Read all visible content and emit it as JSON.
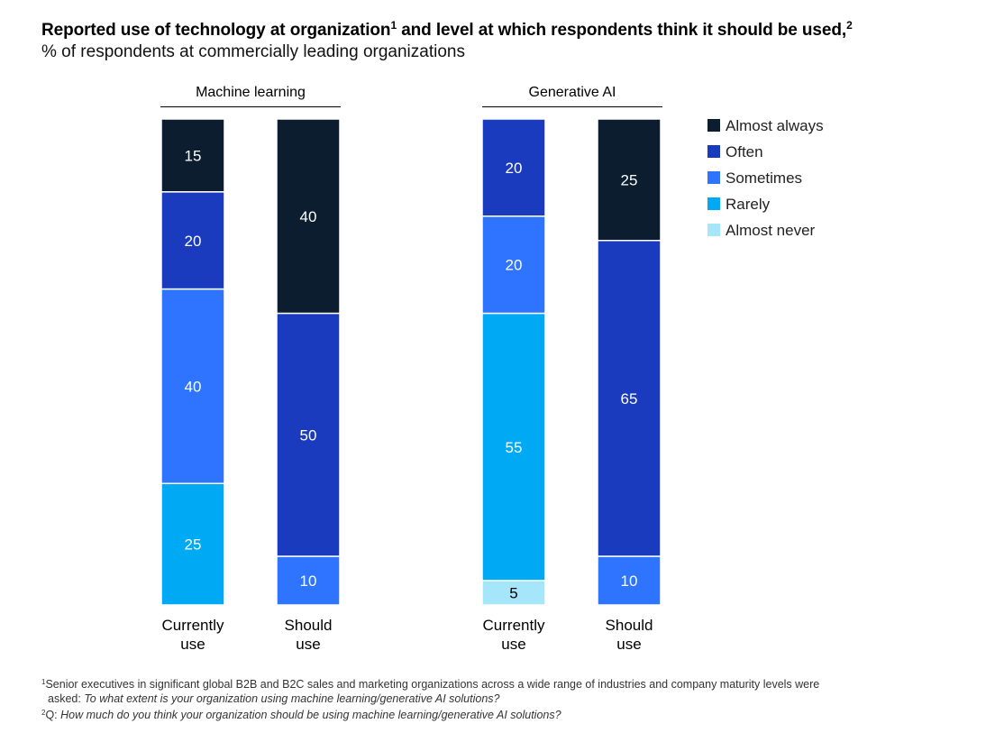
{
  "title": {
    "text": "Reported use of technology at organization",
    "sup1": "1",
    "text2": " and level at which respondents think it should be used,",
    "sup2": "2"
  },
  "subtitle": "% of respondents at commercially leading organizations",
  "chart_data": {
    "type": "bar",
    "stacked": true,
    "normalized_percent": true,
    "categories": [
      "Almost always",
      "Often",
      "Sometimes",
      "Rarely",
      "Almost never"
    ],
    "colors": {
      "Almost always": "#0b1d2e",
      "Often": "#1b3bbf",
      "Sometimes": "#2f74ff",
      "Rarely": "#00a9f4",
      "Almost never": "#a6e6fb"
    },
    "legend_position": "right",
    "groups": [
      {
        "name": "Machine learning",
        "bars": [
          {
            "label_line1": "Currently",
            "label_line2": "use",
            "values": {
              "Almost always": 15,
              "Often": 20,
              "Sometimes": 40,
              "Rarely": 25,
              "Almost never": 0
            }
          },
          {
            "label_line1": "Should",
            "label_line2": "use",
            "values": {
              "Almost always": 40,
              "Often": 50,
              "Sometimes": 10,
              "Rarely": 0,
              "Almost never": 0
            }
          }
        ]
      },
      {
        "name": "Generative AI",
        "bars": [
          {
            "label_line1": "Currently",
            "label_line2": "use",
            "values": {
              "Almost always": 0,
              "Often": 20,
              "Sometimes": 20,
              "Rarely": 55,
              "Almost never": 5
            }
          },
          {
            "label_line1": "Should",
            "label_line2": "use",
            "values": {
              "Almost always": 25,
              "Often": 65,
              "Sometimes": 10,
              "Rarely": 0,
              "Almost never": 0
            }
          }
        ]
      }
    ]
  },
  "footnotes": {
    "fn1_mark": "1",
    "fn1_text": "Senior executives in significant global B2B and B2C sales and marketing organizations across a wide range of industries and company maturity levels were",
    "fn1_line2_prefix": "asked: ",
    "fn1_line2_italic": "To what extent is your organization using machine learning/generative AI solutions?",
    "fn2_mark": "2",
    "fn2_prefix": "Q: ",
    "fn2_italic": "How much do you think your organization should be using machine learning/generative AI solutions?"
  }
}
